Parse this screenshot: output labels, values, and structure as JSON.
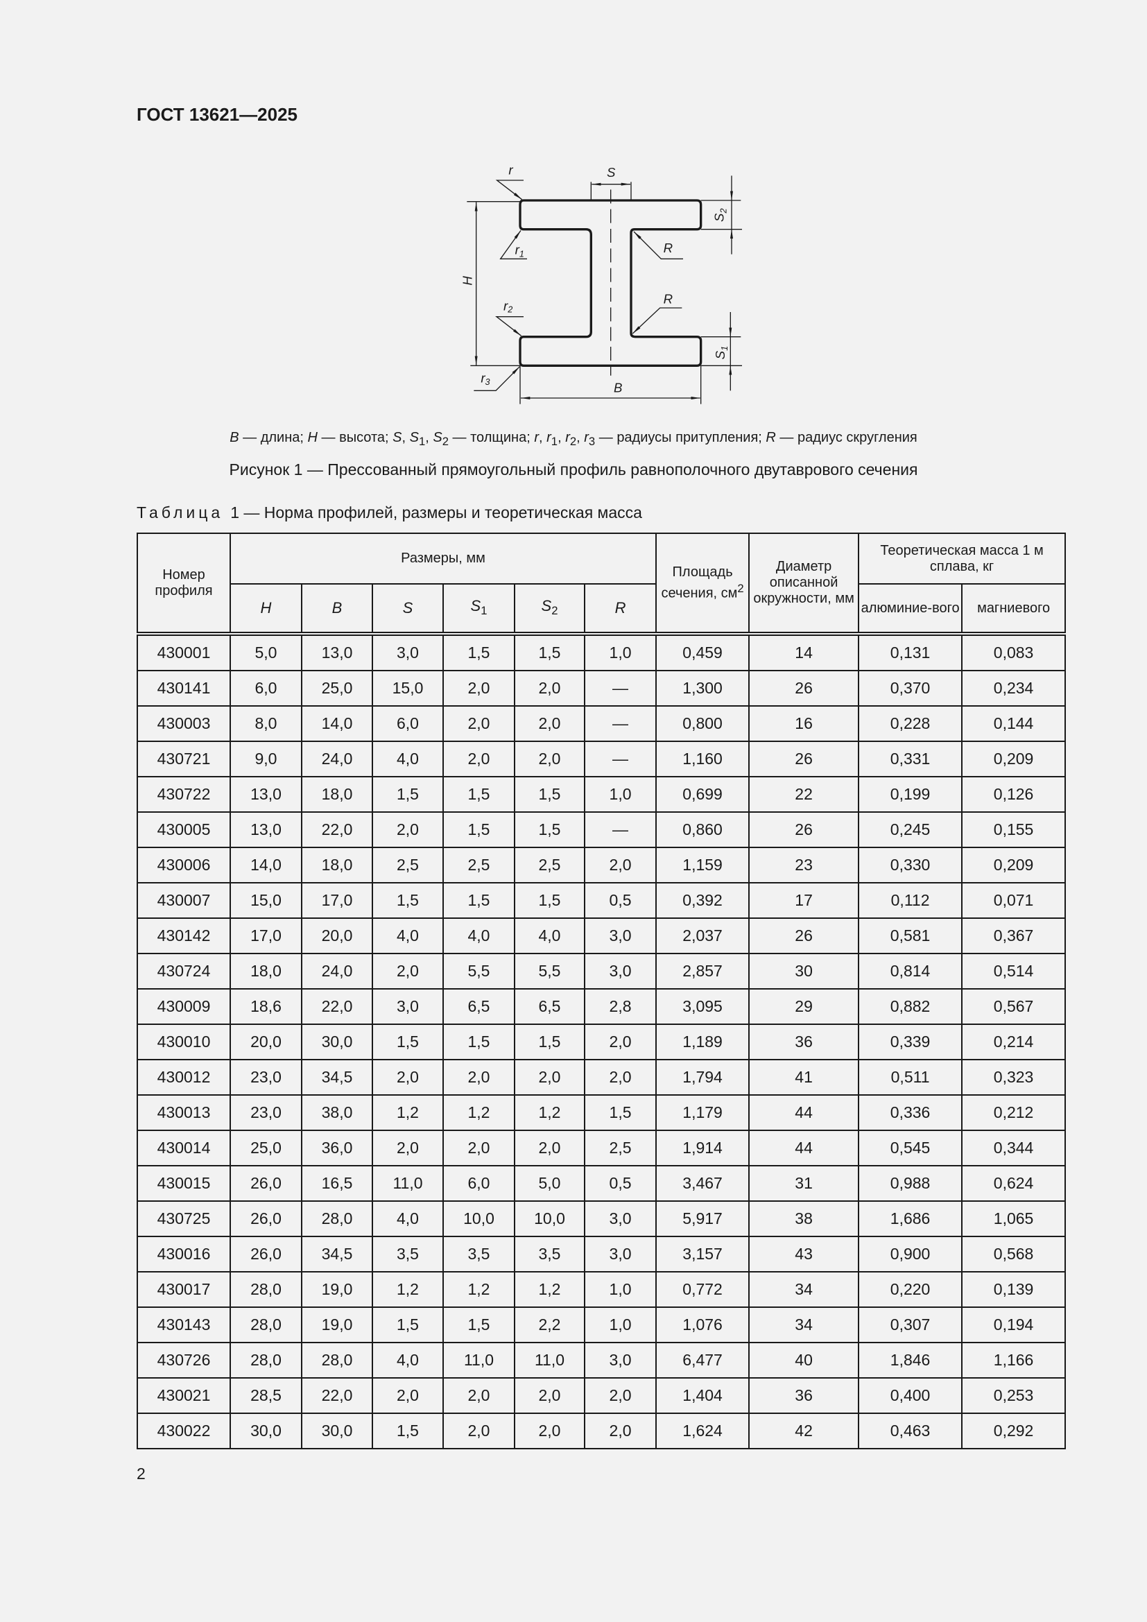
{
  "header": {
    "doc_code": "ГОСТ 13621—2025"
  },
  "figure": {
    "labels": {
      "r": "r",
      "S": "S",
      "S2": "S",
      "S2_sub": "2",
      "r1": "r",
      "r1_sub": "1",
      "R_top": "R",
      "H": "H",
      "r2": "r",
      "r2_sub": "2",
      "R_bottom": "R",
      "S1": "S",
      "S1_sub": "1",
      "r3": "r",
      "r3_sub": "3",
      "B": "B"
    },
    "legend": [
      {
        "symbols": [
          {
            "t": "B"
          }
        ],
        "desc": "длина"
      },
      {
        "symbols": [
          {
            "t": "H"
          }
        ],
        "desc": "высота"
      },
      {
        "symbols": [
          {
            "t": "S"
          },
          {
            "t": "S",
            "sub": "1"
          },
          {
            "t": "S",
            "sub": "2"
          }
        ],
        "desc": "толщина"
      },
      {
        "symbols": [
          {
            "t": "r"
          },
          {
            "t": "r",
            "sub": "1"
          },
          {
            "t": "r",
            "sub": "2"
          },
          {
            "t": "r",
            "sub": "3"
          }
        ],
        "desc": "радиусы притупления"
      },
      {
        "symbols": [
          {
            "t": "R"
          }
        ],
        "desc": "радиус скругления"
      }
    ],
    "caption": "Рисунок 1 — Прессованный прямоугольный профиль равнополочного двутаврового сечения"
  },
  "table": {
    "title_word": "Таблица",
    "title_rest": "1 — Норма профилей, размеры и теоретическая масса",
    "headers": {
      "profile_no": "Номер профиля",
      "dimensions": "Размеры, мм",
      "H": "H",
      "B": "B",
      "S": "S",
      "S1": "S",
      "S1_sub": "1",
      "S2": "S",
      "S2_sub": "2",
      "R": "R",
      "area": "Площадь сечения, см",
      "area_sup": "2",
      "diameter": "Диаметр описанной окружности, мм",
      "mass": "Теоретическая масса 1 м сплава, кг",
      "aluminium": "алюминие-вого",
      "magnesium": "магниевого"
    },
    "rows": [
      [
        "430001",
        "5,0",
        "13,0",
        "3,0",
        "1,5",
        "1,5",
        "1,0",
        "0,459",
        "14",
        "0,131",
        "0,083"
      ],
      [
        "430141",
        "6,0",
        "25,0",
        "15,0",
        "2,0",
        "2,0",
        "—",
        "1,300",
        "26",
        "0,370",
        "0,234"
      ],
      [
        "430003",
        "8,0",
        "14,0",
        "6,0",
        "2,0",
        "2,0",
        "—",
        "0,800",
        "16",
        "0,228",
        "0,144"
      ],
      [
        "430721",
        "9,0",
        "24,0",
        "4,0",
        "2,0",
        "2,0",
        "—",
        "1,160",
        "26",
        "0,331",
        "0,209"
      ],
      [
        "430722",
        "13,0",
        "18,0",
        "1,5",
        "1,5",
        "1,5",
        "1,0",
        "0,699",
        "22",
        "0,199",
        "0,126"
      ],
      [
        "430005",
        "13,0",
        "22,0",
        "2,0",
        "1,5",
        "1,5",
        "—",
        "0,860",
        "26",
        "0,245",
        "0,155"
      ],
      [
        "430006",
        "14,0",
        "18,0",
        "2,5",
        "2,5",
        "2,5",
        "2,0",
        "1,159",
        "23",
        "0,330",
        "0,209"
      ],
      [
        "430007",
        "15,0",
        "17,0",
        "1,5",
        "1,5",
        "1,5",
        "0,5",
        "0,392",
        "17",
        "0,112",
        "0,071"
      ],
      [
        "430142",
        "17,0",
        "20,0",
        "4,0",
        "4,0",
        "4,0",
        "3,0",
        "2,037",
        "26",
        "0,581",
        "0,367"
      ],
      [
        "430724",
        "18,0",
        "24,0",
        "2,0",
        "5,5",
        "5,5",
        "3,0",
        "2,857",
        "30",
        "0,814",
        "0,514"
      ],
      [
        "430009",
        "18,6",
        "22,0",
        "3,0",
        "6,5",
        "6,5",
        "2,8",
        "3,095",
        "29",
        "0,882",
        "0,567"
      ],
      [
        "430010",
        "20,0",
        "30,0",
        "1,5",
        "1,5",
        "1,5",
        "2,0",
        "1,189",
        "36",
        "0,339",
        "0,214"
      ],
      [
        "430012",
        "23,0",
        "34,5",
        "2,0",
        "2,0",
        "2,0",
        "2,0",
        "1,794",
        "41",
        "0,511",
        "0,323"
      ],
      [
        "430013",
        "23,0",
        "38,0",
        "1,2",
        "1,2",
        "1,2",
        "1,5",
        "1,179",
        "44",
        "0,336",
        "0,212"
      ],
      [
        "430014",
        "25,0",
        "36,0",
        "2,0",
        "2,0",
        "2,0",
        "2,5",
        "1,914",
        "44",
        "0,545",
        "0,344"
      ],
      [
        "430015",
        "26,0",
        "16,5",
        "11,0",
        "6,0",
        "5,0",
        "0,5",
        "3,467",
        "31",
        "0,988",
        "0,624"
      ],
      [
        "430725",
        "26,0",
        "28,0",
        "4,0",
        "10,0",
        "10,0",
        "3,0",
        "5,917",
        "38",
        "1,686",
        "1,065"
      ],
      [
        "430016",
        "26,0",
        "34,5",
        "3,5",
        "3,5",
        "3,5",
        "3,0",
        "3,157",
        "43",
        "0,900",
        "0,568"
      ],
      [
        "430017",
        "28,0",
        "19,0",
        "1,2",
        "1,2",
        "1,2",
        "1,0",
        "0,772",
        "34",
        "0,220",
        "0,139"
      ],
      [
        "430143",
        "28,0",
        "19,0",
        "1,5",
        "1,5",
        "2,2",
        "1,0",
        "1,076",
        "34",
        "0,307",
        "0,194"
      ],
      [
        "430726",
        "28,0",
        "28,0",
        "4,0",
        "11,0",
        "11,0",
        "3,0",
        "6,477",
        "40",
        "1,846",
        "1,166"
      ],
      [
        "430021",
        "28,5",
        "22,0",
        "2,0",
        "2,0",
        "2,0",
        "2,0",
        "1,404",
        "36",
        "0,400",
        "0,253"
      ],
      [
        "430022",
        "30,0",
        "30,0",
        "1,5",
        "2,0",
        "2,0",
        "2,0",
        "1,624",
        "42",
        "0,463",
        "0,292"
      ]
    ]
  },
  "footer": {
    "page_number": "2"
  }
}
